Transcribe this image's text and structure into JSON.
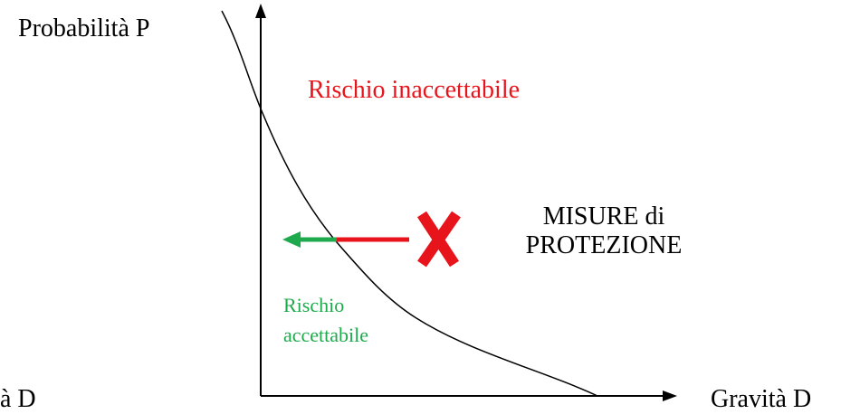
{
  "axes": {
    "y_label": "Probabilità P",
    "x_label": "Gravità D",
    "x_label_left_clipped": "à D"
  },
  "regions": {
    "unacceptable": "Rischio inaccettabile",
    "acceptable": [
      "Rischio",
      "accettabile"
    ]
  },
  "measure": [
    "MISURE di",
    "PROTEZIONE"
  ]
}
